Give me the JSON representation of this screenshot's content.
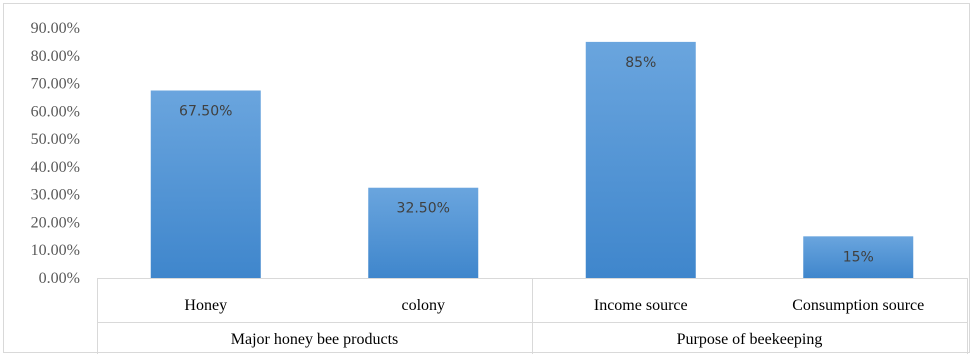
{
  "chart_data": {
    "type": "bar",
    "categories": [
      "Honey",
      "colony",
      "Income source",
      "Consumption source"
    ],
    "groups": [
      {
        "label": "Major honey bee products",
        "categories": [
          "Honey",
          "colony"
        ]
      },
      {
        "label": "Purpose of beekeeping",
        "categories": [
          "Income source",
          "Consumption source"
        ]
      }
    ],
    "values": [
      67.5,
      32.5,
      85,
      15
    ],
    "data_labels": [
      "67.50%",
      "32.50%",
      "85%",
      "15%"
    ],
    "y_ticks": [
      "0.00%",
      "10.00%",
      "20.00%",
      "30.00%",
      "40.00%",
      "50.00%",
      "60.00%",
      "70.00%",
      "80.00%",
      "90.00%"
    ],
    "ylim": [
      0,
      90
    ],
    "title": "",
    "xlabel": "",
    "ylabel": "",
    "grid": false,
    "legend": "none",
    "colors": {
      "bar_top": "#6aa5de",
      "bar_bottom": "#3f86cc",
      "axis": "#d9d9d9"
    }
  }
}
